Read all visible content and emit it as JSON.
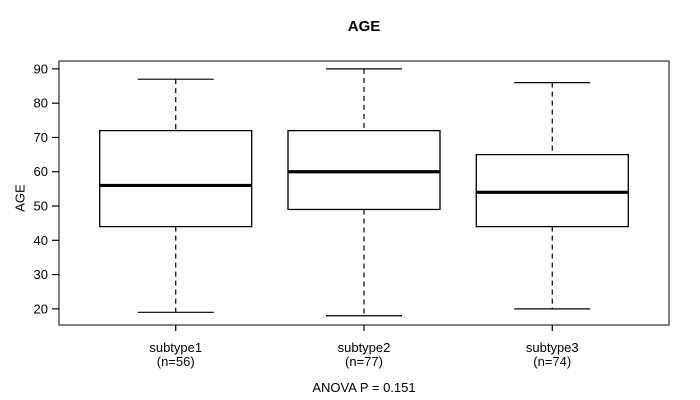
{
  "figure": {
    "background": "#ffffff"
  },
  "chart_data": {
    "type": "boxplot",
    "title": "AGE",
    "ylabel": "AGE",
    "xlabel": "",
    "annotation": "ANOVA P = 0.151",
    "grid": false,
    "ylim": [
      15.3,
      92.3
    ],
    "yticks": [
      20,
      30,
      40,
      50,
      60,
      70,
      80,
      90
    ],
    "categories": [
      "subtype1",
      "subtype2",
      "subtype3"
    ],
    "category_sublabels": [
      "(n=56)",
      "(n=77)",
      "(n=74)"
    ],
    "series": [
      {
        "name": "subtype1",
        "n": 56,
        "whisker_low": 19,
        "q1": 44,
        "median": 56,
        "q3": 72,
        "whisker_high": 87
      },
      {
        "name": "subtype2",
        "n": 77,
        "whisker_low": 18,
        "q1": 49,
        "median": 60,
        "q3": 72,
        "whisker_high": 90
      },
      {
        "name": "subtype3",
        "n": 74,
        "whisker_low": 20,
        "q1": 44,
        "median": 54,
        "q3": 65,
        "whisker_high": 86
      }
    ],
    "colors": {
      "line": "#000000",
      "median": "#000000",
      "box_fill": "#ffffff",
      "frame": "#4d4d4d",
      "text": "#000000",
      "background": "#ffffff"
    }
  }
}
